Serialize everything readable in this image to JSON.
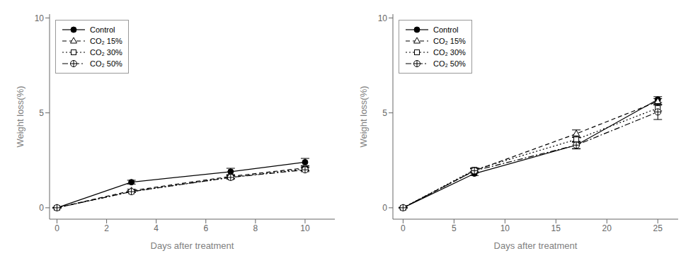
{
  "chart_data": [
    {
      "type": "line",
      "x": [
        0,
        3,
        7,
        10
      ],
      "series": [
        {
          "name": "Control",
          "color": "black",
          "marker": "circle",
          "line_style": "solid",
          "values": [
            0,
            1.35,
            1.9,
            2.4
          ],
          "yerr": [
            0.02,
            0.1,
            0.18,
            0.2
          ]
        },
        {
          "name": "CO₂ 15%",
          "color": "black",
          "marker": "triangle",
          "line_style": "dashed",
          "values": [
            0,
            0.9,
            1.65,
            2.1
          ],
          "yerr": [
            0.02,
            0.08,
            0.1,
            0.12
          ]
        },
        {
          "name": "CO₂ 30%",
          "color": "black",
          "marker": "square",
          "line_style": "dotted",
          "values": [
            0,
            0.85,
            1.6,
            2.05
          ],
          "yerr": [
            0.02,
            0.05,
            0.08,
            0.1
          ]
        },
        {
          "name": "CO₂ 50%",
          "color": "black",
          "marker": "oplus",
          "line_style": "dashdot",
          "values": [
            0,
            0.85,
            1.6,
            2.0
          ],
          "yerr": [
            0.02,
            0.05,
            0.08,
            0.1
          ]
        }
      ],
      "xlim": [
        -0.3,
        11.2
      ],
      "ylim": [
        -0.6,
        10.2
      ],
      "xticks": [
        0,
        2,
        4,
        6,
        8,
        10
      ],
      "yticks": [
        0,
        5,
        10
      ],
      "xlabel": "Days after treatment",
      "ylabel": "Weight loss(%)",
      "grid": false,
      "legend": "upper left"
    },
    {
      "type": "line",
      "x": [
        0,
        7,
        17,
        25
      ],
      "series": [
        {
          "name": "Control",
          "color": "black",
          "marker": "circle",
          "line_style": "solid",
          "values": [
            0,
            1.8,
            3.3,
            5.7
          ],
          "yerr": [
            0.02,
            0.1,
            0.2,
            0.15
          ]
        },
        {
          "name": "CO₂ 15%",
          "color": "black",
          "marker": "triangle",
          "line_style": "dashed",
          "values": [
            0,
            1.95,
            3.9,
            5.6
          ],
          "yerr": [
            0.02,
            0.12,
            0.2,
            0.15
          ]
        },
        {
          "name": "CO₂ 30%",
          "color": "black",
          "marker": "square",
          "line_style": "dotted",
          "values": [
            0,
            2.0,
            3.6,
            5.25
          ],
          "yerr": [
            0.02,
            0.1,
            0.15,
            0.15
          ]
        },
        {
          "name": "CO₂ 50%",
          "color": "black",
          "marker": "oplus",
          "line_style": "dashdot",
          "values": [
            0,
            1.95,
            3.3,
            5.05
          ],
          "yerr": [
            0.02,
            0.1,
            0.18,
            0.4
          ]
        }
      ],
      "xlim": [
        -1,
        27
      ],
      "ylim": [
        -0.6,
        10.2
      ],
      "xticks": [
        0,
        5,
        10,
        15,
        20,
        25
      ],
      "yticks": [
        0,
        5,
        10
      ],
      "xlabel": "Days after treatment",
      "ylabel": "Weight loss(%)",
      "grid": false,
      "legend": "upper left"
    }
  ]
}
